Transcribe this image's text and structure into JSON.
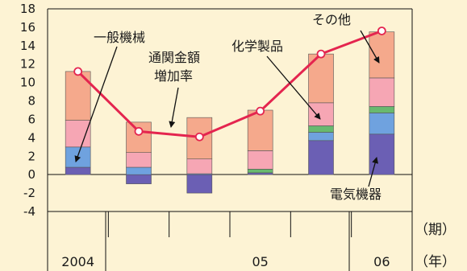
{
  "colors": {
    "background": "#fdf3d4",
    "chemical": "#f5a98c",
    "general": "#f6a6b4",
    "other": "#69b96f",
    "electric": "#6fa2df",
    "electric_dark": "#6b5fb4",
    "line": "#e4254f",
    "marker_fill": "#ffffff"
  },
  "chart_data": {
    "type": "bar+line",
    "ylim": [
      -4,
      18
    ],
    "yticks": [
      "18",
      "16",
      "14",
      "12",
      "10",
      "8",
      "6",
      "4",
      "2",
      "0",
      "-2",
      "-4"
    ],
    "period_unit": "（期）",
    "year_unit": "（年）",
    "year_labels": [
      {
        "label": "2004",
        "start": 0,
        "end": 1
      },
      {
        "label": "05",
        "start": 2,
        "end": 5
      },
      {
        "label": "06",
        "start": 5,
        "end": 6
      }
    ],
    "periods": 6,
    "stack_order_pos": [
      "electric_dark",
      "electric",
      "other",
      "general",
      "chemical"
    ],
    "stack_order_neg": [
      "electric_dark",
      "electric",
      "other",
      "general",
      "chemical"
    ],
    "components": [
      {
        "key": "electric_dark",
        "values": [
          0.8,
          -1.0,
          -2.0,
          0.2,
          3.7,
          4.4
        ]
      },
      {
        "key": "electric",
        "values": [
          2.2,
          0.8,
          0.1,
          0.0,
          0.9,
          2.3
        ]
      },
      {
        "key": "other",
        "values": [
          0.0,
          0.0,
          0.0,
          0.4,
          0.7,
          0.7
        ]
      },
      {
        "key": "general",
        "values": [
          2.9,
          1.6,
          1.6,
          2.0,
          2.5,
          3.1
        ]
      },
      {
        "key": "chemical",
        "values": [
          5.3,
          3.3,
          4.5,
          4.4,
          5.3,
          5.0
        ]
      }
    ],
    "totals": [
      11.2,
      4.7,
      4.1,
      6.9,
      13.1,
      15.6
    ]
  },
  "annotations": {
    "general_machinery": "一般機械",
    "growth_rate_line1": "通関金額",
    "growth_rate_line2": "増加率",
    "chemical_products": "化学製品",
    "others": "その他",
    "electrical_machinery": "電気機器"
  }
}
